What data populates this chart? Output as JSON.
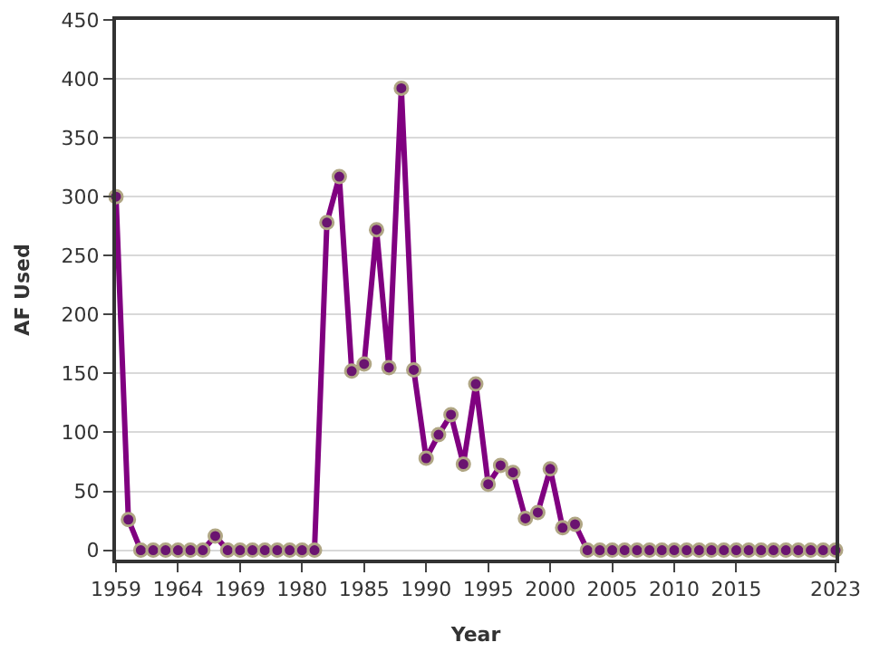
{
  "chart_data": {
    "type": "line",
    "xlabel": "Year",
    "ylabel": "AF Used",
    "categories": [
      "1959",
      null,
      null,
      null,
      null,
      "1964",
      null,
      null,
      null,
      null,
      "1969",
      null,
      null,
      null,
      null,
      "1980",
      null,
      null,
      null,
      null,
      "1985",
      null,
      null,
      null,
      null,
      "1990",
      null,
      null,
      null,
      null,
      "1995",
      null,
      null,
      null,
      null,
      "2000",
      null,
      null,
      null,
      null,
      "2005",
      null,
      null,
      null,
      null,
      "2010",
      null,
      null,
      null,
      null,
      "2015",
      null,
      null,
      null,
      null,
      null,
      null,
      null,
      "2023"
    ],
    "series": [
      {
        "color": "#800080",
        "values": [
          300,
          26,
          0,
          0,
          0,
          0,
          0,
          0,
          12,
          0,
          0,
          0,
          0,
          0,
          0,
          0,
          0,
          278,
          317,
          152,
          158,
          272,
          155,
          392,
          153,
          78,
          98,
          115,
          73,
          141,
          56,
          72,
          66,
          27,
          32,
          69,
          19,
          22,
          0,
          0,
          0,
          0,
          0,
          0,
          0,
          0,
          0,
          0,
          0,
          0,
          0,
          0,
          0,
          0,
          0,
          0,
          0,
          0,
          0
        ]
      }
    ],
    "ylim": [
      -8,
      450
    ],
    "yticks": [
      0,
      50,
      100,
      150,
      200,
      250,
      300,
      350,
      400,
      450
    ],
    "grid": "y",
    "marker": "circle",
    "line_style": "solid",
    "legend": false
  }
}
